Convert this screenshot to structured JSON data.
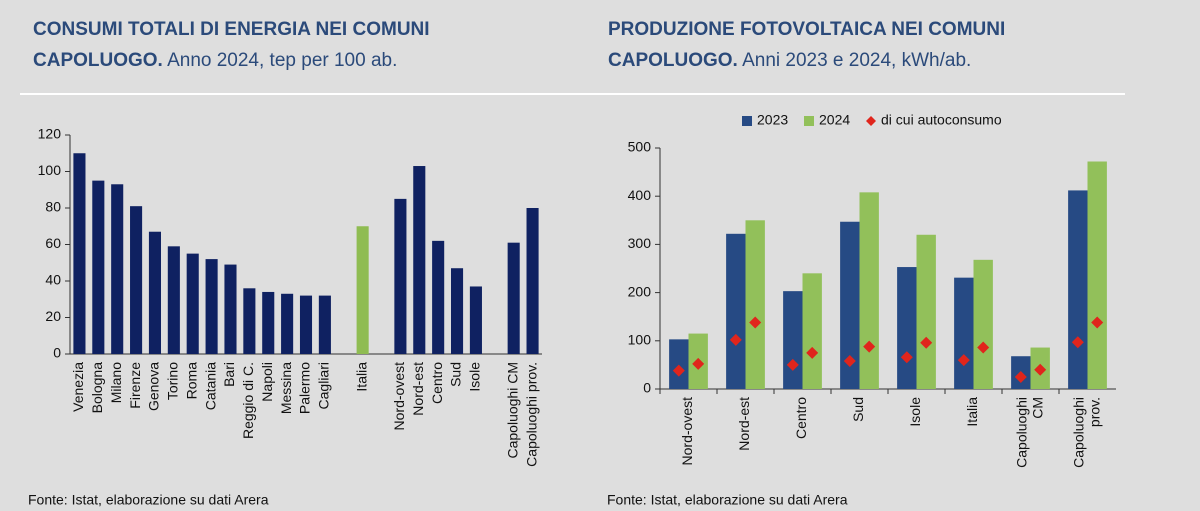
{
  "chart_data": [
    {
      "type": "bar",
      "title": "CONSUMI TOTALI DI ENERGIA NEI COMUNI CAPOLUOGO.",
      "subtitle": "Anno 2024, tep per 100 ab.",
      "source": "Fonte: Istat, elaborazione su dati Arera",
      "categories": [
        "Venezia",
        "Bologna",
        "Milano",
        "Firenze",
        "Genova",
        "Torino",
        "Roma",
        "Catania",
        "Bari",
        "Reggio di C.",
        "Napoli",
        "Messina",
        "Palermo",
        "Cagliari",
        null,
        "Italia",
        null,
        "Nord-ovest",
        "Nord-est",
        "Centro",
        "Sud",
        "Isole",
        null,
        "Capoluoghi CM",
        "Capoluoghi prov."
      ],
      "values": [
        110,
        95,
        93,
        81,
        67,
        59,
        55,
        52,
        49,
        36,
        34,
        33,
        32,
        32,
        null,
        70,
        null,
        85,
        103,
        62,
        47,
        37,
        null,
        61,
        80
      ],
      "colors": [
        "#0f2161",
        "#0f2161",
        "#0f2161",
        "#0f2161",
        "#0f2161",
        "#0f2161",
        "#0f2161",
        "#0f2161",
        "#0f2161",
        "#0f2161",
        "#0f2161",
        "#0f2161",
        "#0f2161",
        "#0f2161",
        null,
        "#8fbc52",
        null,
        "#0f2161",
        "#0f2161",
        "#0f2161",
        "#0f2161",
        "#0f2161",
        null,
        "#0f2161",
        "#0f2161"
      ],
      "ylim": [
        0,
        120
      ],
      "yticks": [
        0,
        20,
        40,
        60,
        80,
        100,
        120
      ]
    },
    {
      "type": "bar",
      "title": "PRODUZIONE FOTOVOLTAICA NEI COMUNI CAPOLUOGO.",
      "subtitle": "Anni 2023 e 2024, kWh/ab.",
      "source": "Fonte: Istat, elaborazione su dati Arera",
      "categories": [
        "Nord-ovest",
        "Nord-est",
        "Centro",
        "Sud",
        "Isole",
        "Italia",
        "Capoluoghi CM",
        "Capoluoghi prov."
      ],
      "series": [
        {
          "name": "2023",
          "color": "#264a84",
          "values": [
            103,
            322,
            203,
            347,
            253,
            231,
            68,
            412
          ]
        },
        {
          "name": "2024",
          "color": "#92c05a",
          "values": [
            115,
            350,
            240,
            408,
            320,
            268,
            86,
            472
          ]
        },
        {
          "name": "di cui autoconsumo",
          "color": "#e0251c",
          "marker": "diamond",
          "values": [
            [
              38,
              52
            ],
            [
              102,
              138
            ],
            [
              50,
              75
            ],
            [
              58,
              88
            ],
            [
              66,
              96
            ],
            [
              60,
              86
            ],
            [
              25,
              40
            ],
            [
              97,
              138
            ]
          ]
        }
      ],
      "legend": "top",
      "ylim": [
        0,
        500
      ],
      "yticks": [
        0,
        100,
        200,
        300,
        400,
        500
      ]
    }
  ]
}
